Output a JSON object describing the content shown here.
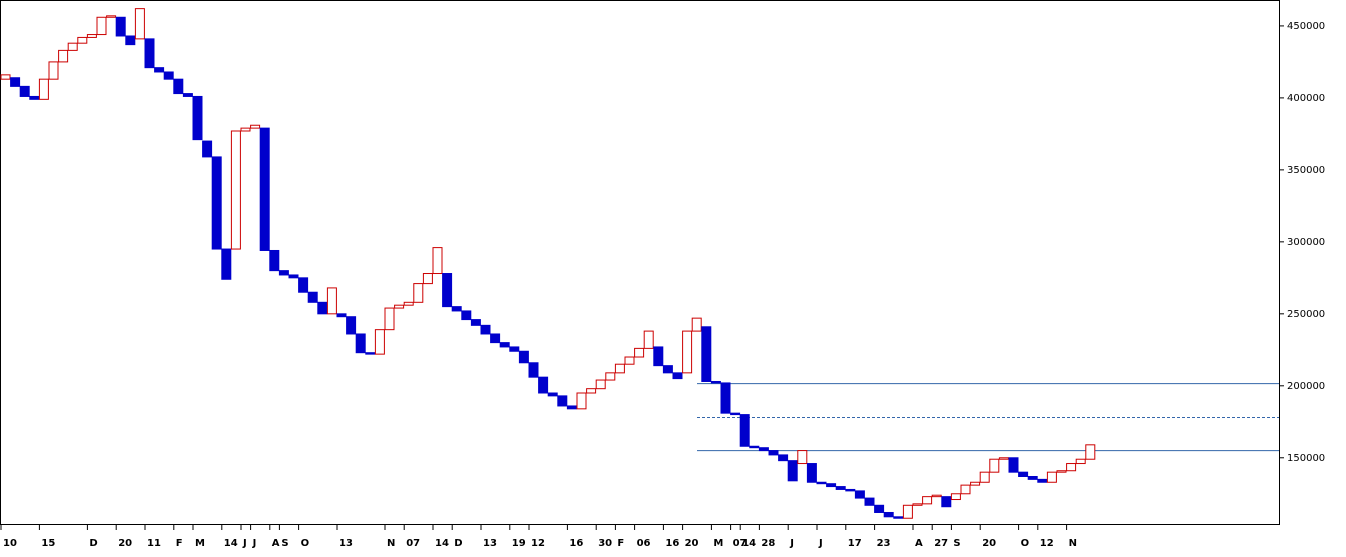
{
  "chart_data": {
    "type": "renko",
    "up_color": "#cc0000",
    "down_color": "#0000cc",
    "open": [
      413000,
      414000,
      408000,
      401000,
      399000,
      413000,
      425000,
      433000,
      438000,
      442000,
      444000,
      456000,
      456000,
      443000,
      441000,
      441000,
      421000,
      418000,
      413000,
      403000,
      401000,
      370000,
      359000,
      295000,
      295000,
      377000,
      379000,
      379000,
      294000,
      280000,
      277000,
      275000,
      265000,
      258000,
      250000,
      250000,
      248000,
      236000,
      223000,
      222000,
      239000,
      254000,
      256000,
      258000,
      271000,
      278000,
      278000,
      255000,
      252000,
      246000,
      242000,
      236000,
      230000,
      227000,
      224000,
      216000,
      206000,
      195000,
      193000,
      186000,
      184000,
      195000,
      198000,
      204000,
      209000,
      215000,
      220000,
      226000,
      227000,
      214000,
      209000,
      209000,
      238000,
      241000,
      203000,
      202000,
      181000,
      180000,
      158000,
      157000,
      155000,
      152000,
      148000,
      146000,
      146000,
      133000,
      132000,
      130000,
      128000,
      127000,
      122000,
      117000,
      112000,
      109000,
      108000,
      117000,
      118000,
      123000,
      123000,
      121000,
      125000,
      131000,
      133000,
      140000,
      149000,
      150000,
      140000,
      137000,
      135000,
      133000,
      140000,
      141000,
      146000,
      149000
    ],
    "close": [
      416000,
      408000,
      401000,
      399000,
      413000,
      425000,
      433000,
      438000,
      442000,
      444000,
      456000,
      457000,
      443000,
      437000,
      462000,
      421000,
      418000,
      413000,
      403000,
      401000,
      371000,
      359000,
      295000,
      274000,
      377000,
      379000,
      381000,
      294000,
      280000,
      277000,
      275000,
      265000,
      258000,
      250000,
      268000,
      248000,
      236000,
      223000,
      222000,
      239000,
      254000,
      256000,
      258000,
      271000,
      278000,
      296000,
      255000,
      252000,
      246000,
      242000,
      236000,
      230000,
      227000,
      224000,
      216000,
      206000,
      195000,
      193000,
      186000,
      184000,
      195000,
      198000,
      204000,
      209000,
      215000,
      220000,
      226000,
      238000,
      214000,
      209000,
      205000,
      238000,
      247000,
      203000,
      202000,
      181000,
      180000,
      158000,
      157000,
      155000,
      152000,
      148000,
      134000,
      155000,
      133000,
      132000,
      130000,
      128000,
      127000,
      122000,
      117000,
      112000,
      109000,
      108000,
      117000,
      118000,
      123000,
      124000,
      116000,
      125000,
      131000,
      133000,
      140000,
      149000,
      150000,
      140000,
      137000,
      135000,
      133000,
      140000,
      141000,
      146000,
      149000,
      159000
    ],
    "categories": [
      "10",
      null,
      null,
      null,
      "15",
      null,
      null,
      null,
      null,
      "D",
      null,
      null,
      "20",
      null,
      null,
      "11",
      null,
      null,
      "F",
      null,
      "M",
      null,
      null,
      "14",
      null,
      "J",
      "J",
      null,
      "A",
      "S",
      null,
      "O",
      null,
      null,
      null,
      "13",
      null,
      null,
      null,
      null,
      "N",
      null,
      "07",
      null,
      null,
      "14",
      null,
      "D",
      null,
      null,
      "13",
      null,
      null,
      "19",
      null,
      "12",
      null,
      null,
      null,
      "16",
      null,
      null,
      "30",
      null,
      "F",
      null,
      "06",
      null,
      null,
      "16",
      null,
      "20",
      null,
      null,
      "M",
      null,
      "07",
      "14",
      null,
      "28",
      null,
      null,
      "J",
      null,
      null,
      "J",
      null,
      null,
      "17",
      null,
      null,
      "23",
      null,
      null,
      null,
      "A",
      null,
      "27",
      null,
      "S",
      null,
      null,
      "20",
      null,
      null,
      null,
      "O",
      null,
      "12",
      null,
      null,
      "N",
      null,
      null
    ],
    "ylim": [
      104000,
      468000
    ],
    "yticks": [
      150000,
      200000,
      250000,
      300000,
      350000,
      400000,
      450000
    ],
    "hlines": [
      {
        "value": 201500,
        "style": "solid"
      },
      {
        "value": 178000,
        "style": "dashed"
      },
      {
        "value": 155000,
        "style": "solid"
      }
    ],
    "line_color": "#3366aa"
  }
}
